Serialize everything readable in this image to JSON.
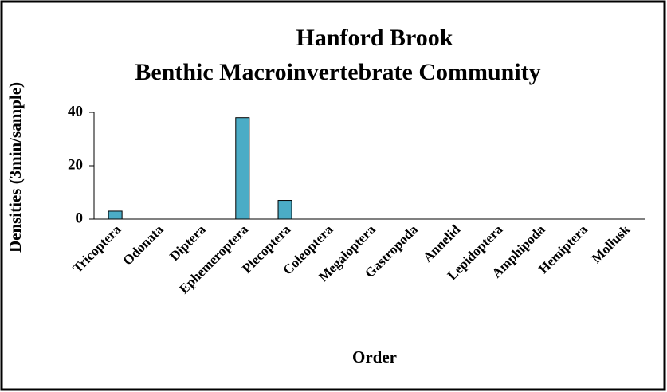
{
  "chart_data": {
    "type": "bar",
    "title": "Hanford Brook",
    "subtitle": "Benthic Macroinvertebrate Community",
    "x_label": "Order",
    "y_label": "Densities (3min/sample)",
    "categories": [
      "Tricoptera",
      "Odonata",
      "Diptera",
      "Ephemeroptera",
      "Plecoptera",
      "Coleoptera",
      "Megaloptera",
      "Gastropoda",
      "Annelid",
      "Lepidoptera",
      "Amphipoda",
      "Hemiptera",
      "Mollusk"
    ],
    "values": [
      3,
      0,
      0,
      38,
      7,
      0,
      0,
      0,
      0,
      0,
      0,
      0,
      0
    ],
    "color": "#4bacc6",
    "ylim": [
      0,
      40
    ],
    "yticks": [
      0,
      20,
      40
    ],
    "grid": false
  }
}
